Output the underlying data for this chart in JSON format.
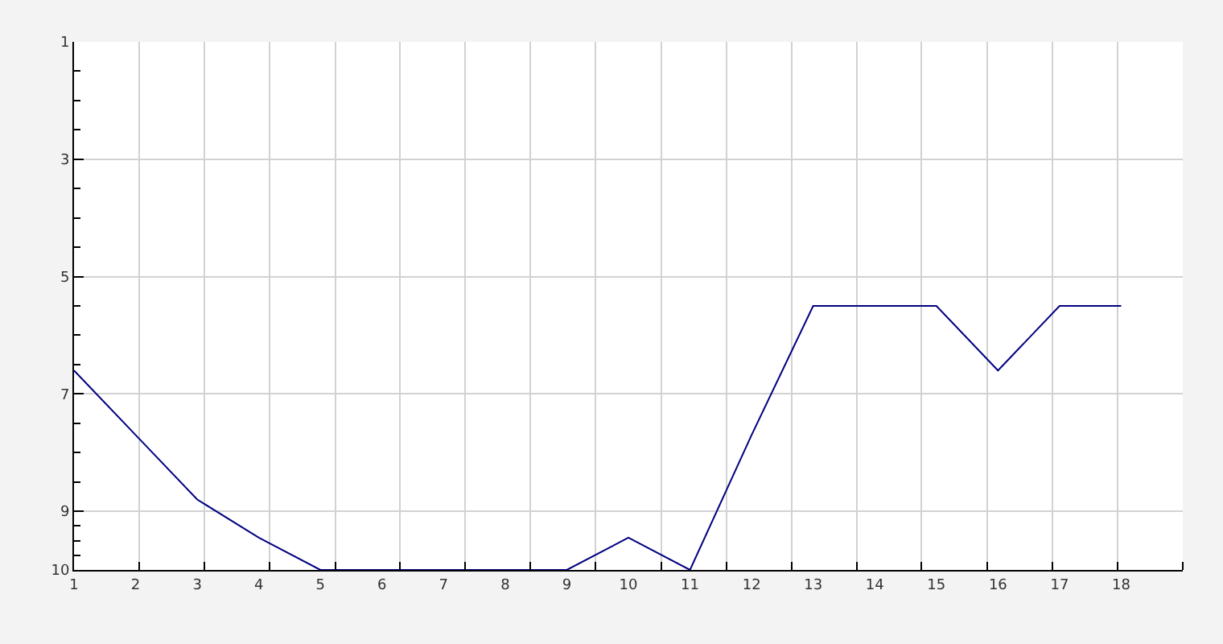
{
  "chart_data": {
    "type": "line",
    "x": [
      1,
      2,
      3,
      4,
      5,
      6,
      7,
      8,
      9,
      10,
      11,
      12,
      13,
      14,
      15,
      16,
      17,
      18
    ],
    "series": [
      {
        "color": "#000080",
        "values": [
          6.6,
          7.7,
          8.8,
          9.45,
          10,
          10,
          10,
          10,
          10,
          9.45,
          10,
          7.7,
          5.5,
          5.5,
          5.5,
          6.6,
          5.5,
          5.5
        ]
      }
    ],
    "xlim": [
      1,
      19
    ],
    "ylim": [
      10,
      1
    ],
    "xticks": [
      1,
      2,
      {
        "value": 2.06,
        "label": null
      },
      3,
      {
        "value": 3.12,
        "label": null
      },
      4,
      {
        "value": 4.18,
        "label": null
      },
      5,
      {
        "value": 5.24,
        "label": null
      },
      6,
      {
        "value": 6.29,
        "label": null
      },
      7,
      {
        "value": 7.35,
        "label": null
      },
      8,
      {
        "value": 8.41,
        "label": null
      },
      9,
      {
        "value": 9.47,
        "label": null
      },
      10,
      {
        "value": 10.53,
        "label": null
      },
      11,
      {
        "value": 11.59,
        "label": null
      },
      12,
      {
        "value": 12.65,
        "label": null
      },
      13,
      {
        "value": 13.71,
        "label": null
      },
      14,
      {
        "value": 14.76,
        "label": null
      },
      15,
      {
        "value": 15.82,
        "label": null
      },
      16,
      {
        "value": 16.88,
        "label": null
      },
      17,
      {
        "value": 17.94,
        "label": null
      },
      18,
      {
        "value": 19,
        "label": null
      }
    ],
    "yticks": [
      1,
      {
        "value": 1.5,
        "label": null
      },
      {
        "value": 2,
        "label": null
      },
      {
        "value": 2.5,
        "label": null
      },
      3,
      {
        "value": 3.5,
        "label": null
      },
      {
        "value": 4,
        "label": null
      },
      {
        "value": 4.5,
        "label": null
      },
      5,
      {
        "value": 5.5,
        "label": null
      },
      {
        "value": 6,
        "label": null
      },
      {
        "value": 6.5,
        "label": null
      },
      7,
      {
        "value": 7.5,
        "label": null
      },
      {
        "value": 8,
        "label": null
      },
      {
        "value": 8.5,
        "label": null
      },
      9,
      {
        "value": 9.25,
        "label": null
      },
      {
        "value": 9.5,
        "label": null
      },
      {
        "value": 9.75,
        "label": null
      },
      10
    ],
    "grid": true,
    "marker": "none",
    "line_style": "solid"
  }
}
